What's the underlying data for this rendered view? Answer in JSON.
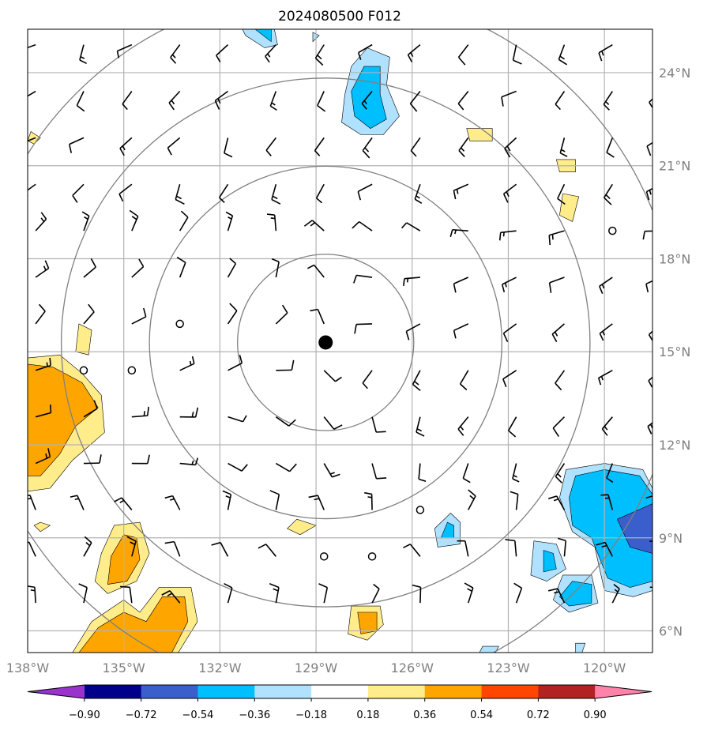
{
  "chart_data": {
    "type": "map",
    "title": "2024080500 F012",
    "x_ticks": [
      "138°W",
      "135°W",
      "132°W",
      "129°W",
      "126°W",
      "123°W",
      "120°W"
    ],
    "y_ticks": [
      "24°N",
      "21°N",
      "18°N",
      "15°N",
      "12°N",
      "9°N",
      "6°N"
    ],
    "lon_range": [
      -138.0,
      -118.5
    ],
    "lat_range": [
      5.3,
      25.4
    ],
    "lon_tick_values": [
      -138,
      -135,
      -132,
      -129,
      -126,
      -123,
      -120
    ],
    "lat_tick_values": [
      24,
      21,
      18,
      15,
      12,
      9,
      6
    ],
    "center": {
      "lon": -128.7,
      "lat": 15.3
    },
    "range_rings_deg": [
      2.75,
      5.5,
      8.25,
      11.0
    ],
    "grid": true,
    "colorbar": {
      "tick_labels": [
        "−0.90",
        "−0.72",
        "−0.54",
        "−0.36",
        "−0.18",
        "0.18",
        "0.36",
        "0.54",
        "0.72",
        "0.90"
      ],
      "colors": [
        "#9a32cd",
        "#00008b",
        "#3a5fcd",
        "#00bfff",
        "#b0e2ff",
        "#ffffff",
        "#ffec8b",
        "#ffa500",
        "#ff4500",
        "#b22222",
        "#ff82ab"
      ],
      "extend": "both"
    },
    "contour_regions": [
      {
        "level": "0.18-0.36",
        "color": "#ffec8b",
        "points": [
          [
            -138,
            14.8
          ],
          [
            -137,
            14.9
          ],
          [
            -136.3,
            14.3
          ],
          [
            -135.7,
            13.6
          ],
          [
            -135.6,
            12.4
          ],
          [
            -136.6,
            11.5
          ],
          [
            -137.3,
            10.6
          ],
          [
            -138,
            10.5
          ]
        ]
      },
      {
        "level": "0.36-0.54",
        "color": "#ffa500",
        "points": [
          [
            -138,
            14.6
          ],
          [
            -137.2,
            14.5
          ],
          [
            -136.3,
            14
          ],
          [
            -135.8,
            13.2
          ],
          [
            -136.5,
            12.6
          ],
          [
            -137,
            11.7
          ],
          [
            -137.6,
            11
          ],
          [
            -138,
            11
          ]
        ]
      },
      {
        "level": "0.18-0.36",
        "color": "#ffec8b",
        "points": [
          [
            -136.4,
            15.9
          ],
          [
            -136,
            15.7
          ],
          [
            -136.1,
            14.9
          ],
          [
            -136.5,
            15
          ]
        ]
      },
      {
        "level": "0.18-0.36",
        "color": "#ffec8b",
        "points": [
          [
            -137.9,
            22.1
          ],
          [
            -137.6,
            21.9
          ],
          [
            -137.8,
            21.7
          ],
          [
            -138,
            21.8
          ]
        ]
      },
      {
        "level": "0.18-0.36",
        "color": "#ffec8b",
        "points": [
          [
            -135.3,
            9.4
          ],
          [
            -134.5,
            9.5
          ],
          [
            -134.2,
            8.5
          ],
          [
            -134.6,
            7.6
          ],
          [
            -135.5,
            7.2
          ],
          [
            -135.9,
            7.6
          ],
          [
            -135.7,
            8.5
          ]
        ]
      },
      {
        "level": "0.36-0.54",
        "color": "#ffa500",
        "points": [
          [
            -135,
            9.1
          ],
          [
            -134.6,
            9
          ],
          [
            -134.5,
            8.3
          ],
          [
            -134.9,
            7.6
          ],
          [
            -135.5,
            7.5
          ],
          [
            -135.4,
            8.4
          ]
        ]
      },
      {
        "level": "0.18-0.36",
        "color": "#ffec8b",
        "points": [
          [
            -136.6,
            5.3
          ],
          [
            -136,
            6.3
          ],
          [
            -135,
            7
          ],
          [
            -134.5,
            6.6
          ],
          [
            -133.9,
            7.4
          ],
          [
            -132.9,
            7.4
          ],
          [
            -132.7,
            6.3
          ],
          [
            -133.3,
            5.3
          ]
        ]
      },
      {
        "level": "0.36-0.54",
        "color": "#ffa500",
        "points": [
          [
            -136.4,
            5.3
          ],
          [
            -135.8,
            6.1
          ],
          [
            -135,
            6.6
          ],
          [
            -134.3,
            6.3
          ],
          [
            -133.8,
            7.1
          ],
          [
            -133.1,
            7.1
          ],
          [
            -133,
            6.3
          ],
          [
            -133.5,
            5.3
          ]
        ]
      },
      {
        "level": "0.18-0.36",
        "color": "#ffec8b",
        "points": [
          [
            -137.6,
            9.5
          ],
          [
            -137.3,
            9.4
          ],
          [
            -137.6,
            9.2
          ],
          [
            -137.8,
            9.4
          ]
        ]
      },
      {
        "level": "0.18-0.36",
        "color": "#ffec8b",
        "points": [
          [
            -129.6,
            9.6
          ],
          [
            -129,
            9.4
          ],
          [
            -129.5,
            9.1
          ],
          [
            -129.9,
            9.3
          ]
        ]
      },
      {
        "level": "0.18-0.36",
        "color": "#ffec8b",
        "points": [
          [
            -127.9,
            6.8
          ],
          [
            -127,
            6.8
          ],
          [
            -126.9,
            6.2
          ],
          [
            -127.4,
            5.7
          ],
          [
            -128.0,
            5.9
          ]
        ]
      },
      {
        "level": "0.36-0.54",
        "color": "#ffa500",
        "points": [
          [
            -127.7,
            6.6
          ],
          [
            -127.1,
            6.6
          ],
          [
            -127.1,
            6
          ],
          [
            -127.6,
            5.9
          ]
        ]
      },
      {
        "level": "0.18-0.36",
        "color": "#ffec8b",
        "points": [
          [
            -124.3,
            22.2
          ],
          [
            -123.5,
            22.2
          ],
          [
            -123.5,
            21.8
          ],
          [
            -124.2,
            21.8
          ]
        ]
      },
      {
        "level": "0.18-0.36",
        "color": "#ffec8b",
        "points": [
          [
            -121.5,
            21.2
          ],
          [
            -120.9,
            21.2
          ],
          [
            -120.9,
            20.8
          ],
          [
            -121.4,
            20.8
          ]
        ]
      },
      {
        "level": "0.18-0.36",
        "color": "#ffec8b",
        "points": [
          [
            -121.3,
            20.1
          ],
          [
            -120.8,
            20
          ],
          [
            -121,
            19.2
          ],
          [
            -121.4,
            19.4
          ]
        ]
      },
      {
        "level": "-0.36 to -0.18",
        "color": "#b0e2ff",
        "points": [
          [
            -127.4,
            24.8
          ],
          [
            -126.7,
            24.5
          ],
          [
            -126.8,
            23.6
          ],
          [
            -126.4,
            22.6
          ],
          [
            -126.9,
            22
          ],
          [
            -127.6,
            22
          ],
          [
            -128.2,
            22.4
          ],
          [
            -128.1,
            23.3
          ],
          [
            -127.9,
            24.2
          ]
        ]
      },
      {
        "level": "-0.54 to -0.36",
        "color": "#00bfff",
        "points": [
          [
            -127.5,
            24.2
          ],
          [
            -127,
            24.2
          ],
          [
            -127,
            23.3
          ],
          [
            -126.8,
            22.5
          ],
          [
            -127.3,
            22.2
          ],
          [
            -127.8,
            22.6
          ],
          [
            -127.9,
            23.4
          ]
        ]
      },
      {
        "level": "-0.36 to -0.18",
        "color": "#b0e2ff",
        "points": [
          [
            -131.3,
            25.4
          ],
          [
            -130.3,
            25.4
          ],
          [
            -130.2,
            24.9
          ],
          [
            -130.6,
            24.8
          ],
          [
            -131.2,
            25.2
          ]
        ]
      },
      {
        "level": "-0.54 to -0.36",
        "color": "#00bfff",
        "points": [
          [
            -130.9,
            25.4
          ],
          [
            -130.4,
            25.4
          ],
          [
            -130.4,
            25
          ]
        ]
      },
      {
        "level": "-0.36 to -0.18",
        "color": "#b0e2ff",
        "points": [
          [
            -129.1,
            25.3
          ],
          [
            -128.9,
            25.2
          ],
          [
            -129.1,
            25
          ]
        ]
      },
      {
        "level": "-0.36 to -0.18",
        "color": "#b0e2ff",
        "points": [
          [
            -121.2,
            11.2
          ],
          [
            -120,
            11.4
          ],
          [
            -118.8,
            11.2
          ],
          [
            -118.5,
            10.6
          ],
          [
            -118.5,
            7.3
          ],
          [
            -119.1,
            7.1
          ],
          [
            -120,
            7.3
          ],
          [
            -120.3,
            8.7
          ],
          [
            -121,
            9.2
          ],
          [
            -121.4,
            10.3
          ]
        ]
      },
      {
        "level": "-0.54 to -0.36",
        "color": "#00bfff",
        "points": [
          [
            -120.9,
            11
          ],
          [
            -120,
            11.2
          ],
          [
            -118.9,
            11
          ],
          [
            -118.5,
            10.4
          ],
          [
            -118.5,
            7.6
          ],
          [
            -119.2,
            7.4
          ],
          [
            -119.9,
            7.7
          ],
          [
            -120.4,
            9
          ],
          [
            -121,
            9.4
          ],
          [
            -121.1,
            10.3
          ]
        ]
      },
      {
        "level": "-0.72 to -0.54",
        "color": "#3a5fcd",
        "points": [
          [
            -119.6,
            9.6
          ],
          [
            -118.5,
            10.1
          ],
          [
            -118.5,
            8.5
          ],
          [
            -119.2,
            8.7
          ]
        ]
      },
      {
        "level": "-0.36 to -0.18",
        "color": "#b0e2ff",
        "points": [
          [
            -122.2,
            8.9
          ],
          [
            -121.5,
            8.8
          ],
          [
            -121.2,
            8
          ],
          [
            -121.8,
            7.6
          ],
          [
            -122.3,
            7.8
          ]
        ]
      },
      {
        "level": "-0.54 to -0.36",
        "color": "#00bfff",
        "points": [
          [
            -121.9,
            8.6
          ],
          [
            -121.6,
            8.5
          ],
          [
            -121.5,
            8
          ],
          [
            -121.9,
            7.9
          ]
        ]
      },
      {
        "level": "-0.36 to -0.18",
        "color": "#b0e2ff",
        "points": [
          [
            -121.3,
            7.8
          ],
          [
            -120.4,
            7.8
          ],
          [
            -120.2,
            6.9
          ],
          [
            -121.1,
            6.6
          ],
          [
            -121.6,
            7
          ]
        ]
      },
      {
        "level": "-0.54 to -0.36",
        "color": "#00bfff",
        "points": [
          [
            -121,
            7.6
          ],
          [
            -120.4,
            7.5
          ],
          [
            -120.4,
            6.9
          ],
          [
            -121.1,
            6.8
          ],
          [
            -121.4,
            7.1
          ]
        ]
      },
      {
        "level": "-0.36 to -0.18",
        "color": "#b0e2ff",
        "points": [
          [
            -124.8,
            9.8
          ],
          [
            -124.5,
            9.5
          ],
          [
            -124.5,
            8.8
          ],
          [
            -125.2,
            8.7
          ],
          [
            -125.3,
            9.3
          ]
        ]
      },
      {
        "level": "-0.54 to -0.36",
        "color": "#00bfff",
        "points": [
          [
            -124.9,
            9.5
          ],
          [
            -124.7,
            9.4
          ],
          [
            -124.7,
            9.0
          ],
          [
            -125.1,
            9.0
          ]
        ]
      },
      {
        "level": "-0.36 to -0.18",
        "color": "#b0e2ff",
        "points": [
          [
            -123.8,
            5.5
          ],
          [
            -123.3,
            5.5
          ],
          [
            -123.4,
            5.3
          ],
          [
            -123.9,
            5.3
          ]
        ]
      },
      {
        "level": "-0.36 to -0.18",
        "color": "#b0e2ff",
        "points": [
          [
            -120.9,
            5.6
          ],
          [
            -120.6,
            5.6
          ],
          [
            -120.7,
            5.3
          ],
          [
            -120.9,
            5.3
          ]
        ]
      }
    ]
  }
}
